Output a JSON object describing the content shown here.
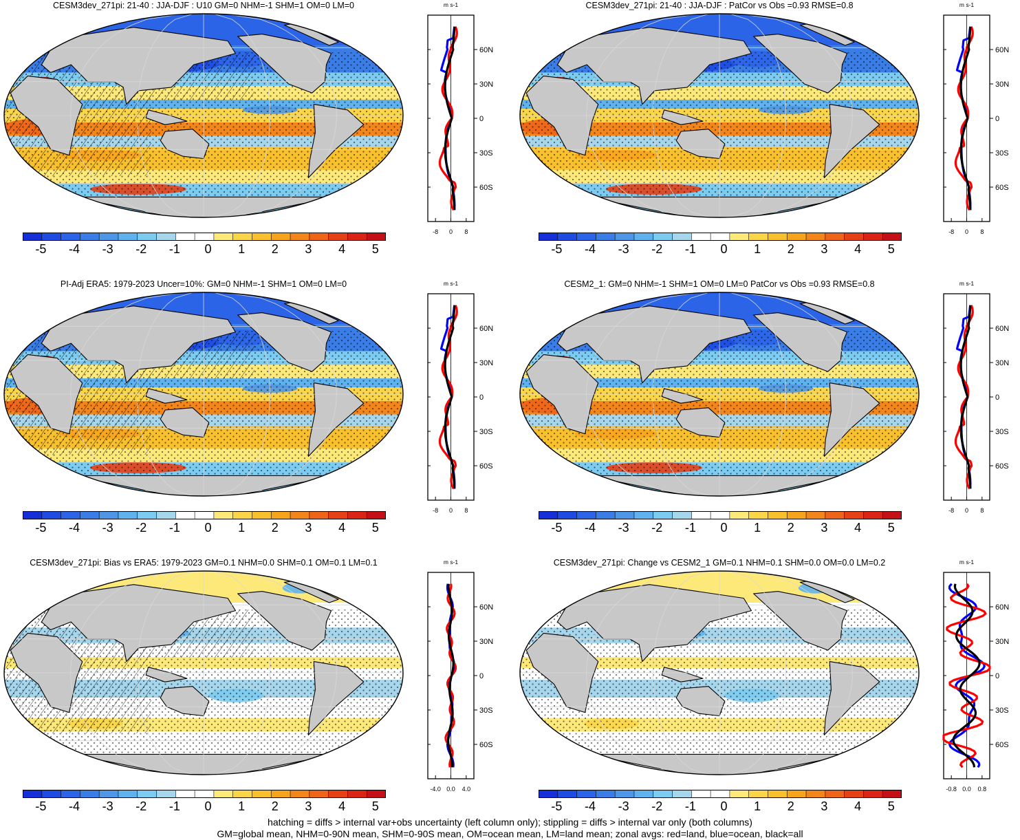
{
  "colors": {
    "land": "#c8c8c8",
    "zonal_land": "#ff0000",
    "zonal_ocean": "#0000ff",
    "zonal_all": "#000000",
    "colorbar": [
      "#1530d8",
      "#1e4be2",
      "#2c64e8",
      "#3a7de6",
      "#4d97e6",
      "#5fb2ee",
      "#7ccbf0",
      "#a6d6ec",
      "#ffffff",
      "#ffffff",
      "#fde97a",
      "#fbd548",
      "#f9c02e",
      "#f7a41d",
      "#f3861a",
      "#ee6418",
      "#e64016",
      "#dc2416",
      "#c51018"
    ]
  },
  "colorbar_labels": [
    "-5",
    "-4",
    "-3",
    "-2",
    "-1",
    "0",
    "1",
    "2",
    "3",
    "4",
    "5"
  ],
  "panels": [
    {
      "id": "p1",
      "title": "CESM3dev_271pi: 21-40 : JJA-DJF : U10 GM=0 NHM=-1 SHM=1 OM=0 LM=0",
      "zonal_unit": "m s-1",
      "lat_ticks": [
        "60N",
        "30N",
        "0",
        "30S",
        "60S"
      ],
      "x_ticks": [
        "-8",
        "0",
        "8"
      ],
      "xrange": [
        -12,
        12
      ],
      "pattern": "A",
      "hatch": true
    },
    {
      "id": "p2",
      "title": "CESM3dev_271pi: 21-40 : JJA-DJF : PatCor vs Obs =0.93 RMSE=0.8",
      "zonal_unit": "m s-1",
      "lat_ticks": [
        "60N",
        "30N",
        "0",
        "30S",
        "60S"
      ],
      "x_ticks": [
        "-8",
        "0",
        "8"
      ],
      "xrange": [
        -12,
        12
      ],
      "pattern": "A",
      "hatch": false
    },
    {
      "id": "p3",
      "title": "PI-Adj ERA5: 1979-2023 Uncer=10%: GM=0 NHM=-1 SHM=1 OM=0 LM=0",
      "zonal_unit": "m s-1",
      "lat_ticks": [
        "60N",
        "30N",
        "0",
        "30S",
        "60S"
      ],
      "x_ticks": [
        "-8",
        "0",
        "8"
      ],
      "xrange": [
        -12,
        12
      ],
      "pattern": "A",
      "hatch": true
    },
    {
      "id": "p4",
      "title": "CESM2_1: GM=0 NHM=-1 SHM=1 OM=0 LM=0 PatCor vs Obs =0.93 RMSE=0.8",
      "zonal_unit": "m s-1",
      "lat_ticks": [
        "60N",
        "30N",
        "0",
        "30S",
        "60S"
      ],
      "x_ticks": [
        "-8",
        "0",
        "8"
      ],
      "xrange": [
        -12,
        12
      ],
      "pattern": "A",
      "hatch": false
    },
    {
      "id": "p5",
      "title": "CESM3dev_271pi: Bias vs ERA5: 1979-2023 GM=0.1 NHM=0.0 SHM=0.1 OM=0.1 LM=0.1",
      "zonal_unit": "m s-1",
      "lat_ticks": [
        "60N",
        "30N",
        "0",
        "30S",
        "60S"
      ],
      "x_ticks": [
        "-4.0",
        "0.0",
        "4.0"
      ],
      "xrange": [
        -6,
        6
      ],
      "pattern": "B",
      "hatch": true
    },
    {
      "id": "p6",
      "title": "CESM3dev_271pi: Change vs CESM2_1 GM=0.1 NHM=0.1 SHM=0.0 OM=0.0 LM=0.2",
      "zonal_unit": "m s-1",
      "lat_ticks": [
        "60N",
        "30N",
        "0",
        "30S",
        "60S"
      ],
      "x_ticks": [
        "-0.8",
        "0.0",
        "0.8"
      ],
      "xrange": [
        -1.2,
        1.2
      ],
      "pattern": "B",
      "hatch": false
    }
  ],
  "footer": {
    "line1": "hatching = diffs > internal var+obs uncertainty (left column only); stippling = diffs > internal var only (both columns)",
    "line2": "GM=global mean, NHM=0-90N mean, SHM=0-90S mean, OM=ocean mean, LM=land mean; zonal avgs: red=land, blue=ocean, black=all"
  }
}
